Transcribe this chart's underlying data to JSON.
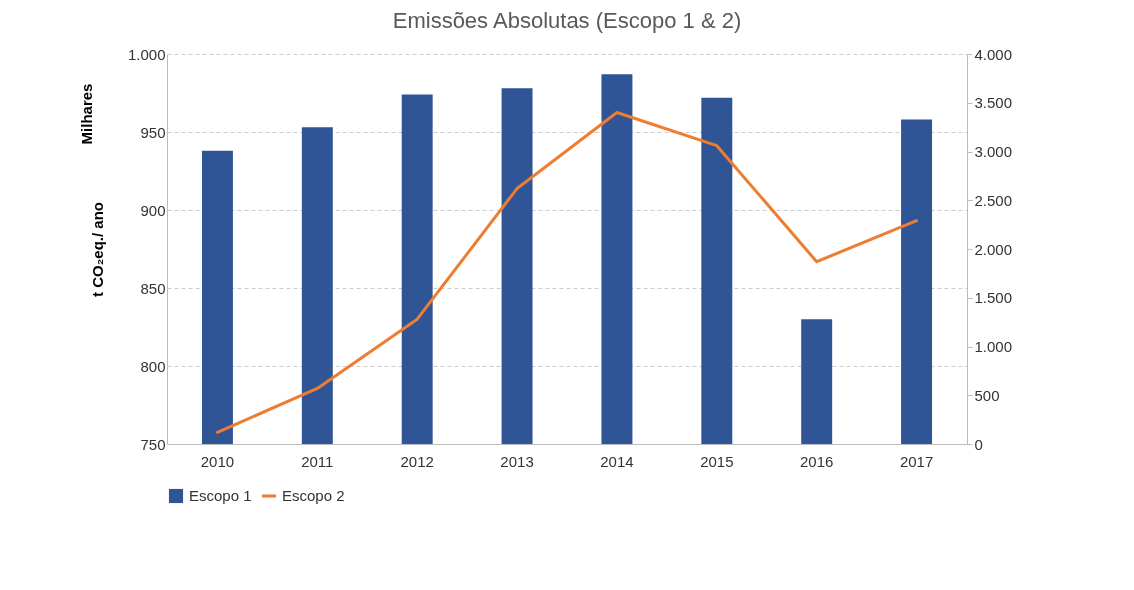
{
  "chart_data": {
    "type": "bar",
    "title": "Emissões Absolutas (Escopo 1 & 2)",
    "ylabel": "t CO₂eq./ ano",
    "annotations": [
      "Milhares"
    ],
    "categories": [
      "2010",
      "2011",
      "2012",
      "2013",
      "2014",
      "2015",
      "2016",
      "2017"
    ],
    "series": [
      {
        "name": "Escopo 1",
        "color": "#2f5597",
        "values": [
          938,
          953,
          974,
          978,
          987,
          972,
          830,
          958
        ]
      },
      {
        "name": "Escopo 2",
        "type": "line",
        "axis": "y2",
        "color": "#ed7d31",
        "values": [
          120,
          570,
          1280,
          2620,
          3400,
          3060,
          1870,
          2290
        ]
      }
    ],
    "ylim": [
      750,
      1000
    ],
    "yticks": [
      750,
      800,
      850,
      900,
      950,
      {
        "value": 1000,
        "label": "1.000"
      }
    ],
    "y2lim": [
      0,
      4000
    ],
    "y2ticks": [
      0,
      500,
      {
        "value": 1000,
        "label": "1.000"
      },
      {
        "value": 1500,
        "label": "1.500"
      },
      {
        "value": 2000,
        "label": "2.000"
      },
      {
        "value": 2500,
        "label": "2.500"
      },
      {
        "value": 3000,
        "label": "3.000"
      },
      {
        "value": 3500,
        "label": "3.500"
      },
      {
        "value": 4000,
        "label": "4.000"
      }
    ],
    "grid": "y",
    "legend": "bottom"
  }
}
